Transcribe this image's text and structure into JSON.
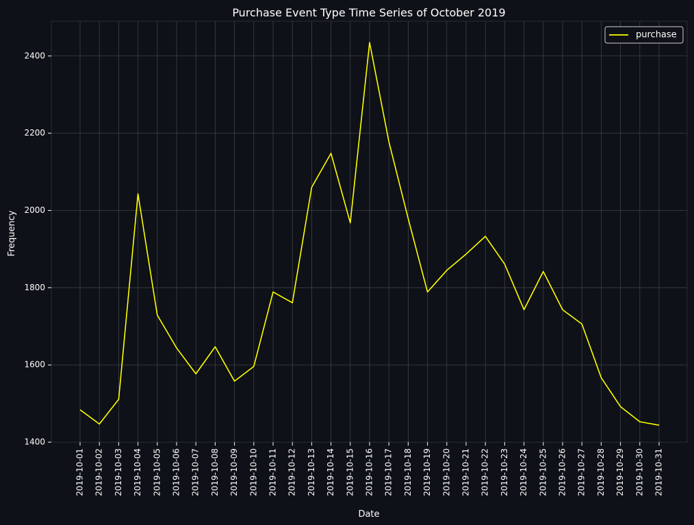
{
  "chart_data": {
    "type": "line",
    "title": "Purchase Event Type Time Series of October 2019",
    "xlabel": "Date",
    "ylabel": "Frequency",
    "x": [
      "2019-10-01",
      "2019-10-02",
      "2019-10-03",
      "2019-10-04",
      "2019-10-05",
      "2019-10-06",
      "2019-10-07",
      "2019-10-08",
      "2019-10-09",
      "2019-10-10",
      "2019-10-11",
      "2019-10-12",
      "2019-10-13",
      "2019-10-14",
      "2019-10-15",
      "2019-10-16",
      "2019-10-17",
      "2019-10-18",
      "2019-10-19",
      "2019-10-20",
      "2019-10-21",
      "2019-10-22",
      "2019-10-23",
      "2019-10-24",
      "2019-10-25",
      "2019-10-26",
      "2019-10-27",
      "2019-10-28",
      "2019-10-29",
      "2019-10-30",
      "2019-10-31"
    ],
    "series": [
      {
        "name": "purchase",
        "color": "#ffff00",
        "values": [
          1484,
          1447,
          1511,
          2043,
          1729,
          1644,
          1577,
          1647,
          1558,
          1596,
          1789,
          1761,
          2060,
          2148,
          1968,
          2435,
          2178,
          1979,
          1789,
          1845,
          1887,
          1933,
          1861,
          1743,
          1842,
          1743,
          1706,
          1567,
          1492,
          1453,
          1444
        ]
      }
    ],
    "yticks": [
      1400,
      1600,
      1800,
      2000,
      2200,
      2400
    ],
    "ylim": [
      1400,
      2490
    ],
    "grid": true,
    "legend_position": "top-right",
    "background_color": "#0e1117",
    "grid_color": "#4a4d52"
  }
}
